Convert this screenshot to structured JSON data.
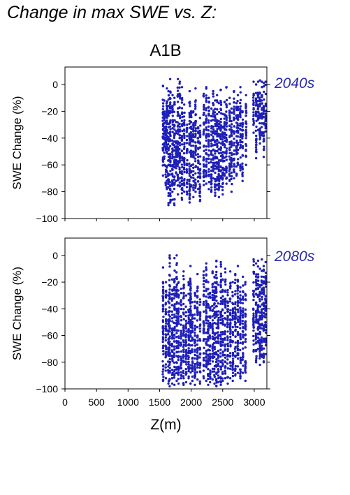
{
  "figure": {
    "title": "Change in max SWE vs. Z:",
    "scenario": "A1B",
    "colors": {
      "points": "#1f1fb8",
      "period_label": "#2a2ab0",
      "axes": "#000000"
    }
  },
  "chart_data": [
    {
      "type": "scatter",
      "period_label": "2040s",
      "xlabel": "",
      "ylabel": "SWE Change (%)",
      "xlim": [
        0,
        3200
      ],
      "ylim": [
        -100,
        13
      ],
      "yticks": [
        0,
        -20,
        -40,
        -60,
        -80,
        -100
      ],
      "x_tick_labels": [],
      "series": [
        {
          "name": "",
          "columns": [
            {
              "x": 1555,
              "top": -1,
              "bottom": -68
            },
            {
              "x": 1575,
              "top": -12,
              "bottom": -60
            },
            {
              "x": 1598,
              "top": -22,
              "bottom": -75
            },
            {
              "x": 1615,
              "top": -3,
              "bottom": -78
            },
            {
              "x": 1640,
              "top": -5,
              "bottom": -90
            },
            {
              "x": 1668,
              "top": 4,
              "bottom": -88
            },
            {
              "x": 1705,
              "top": -8,
              "bottom": -86
            },
            {
              "x": 1735,
              "top": -10,
              "bottom": -90
            },
            {
              "x": 1762,
              "top": -28,
              "bottom": -72
            },
            {
              "x": 1790,
              "top": 4,
              "bottom": -82
            },
            {
              "x": 1820,
              "top": 2,
              "bottom": -76
            },
            {
              "x": 1855,
              "top": -2,
              "bottom": -86
            },
            {
              "x": 1890,
              "top": -15,
              "bottom": -80
            },
            {
              "x": 1935,
              "top": -30,
              "bottom": -82
            },
            {
              "x": 1975,
              "top": -5,
              "bottom": -88
            },
            {
              "x": 2000,
              "top": -20,
              "bottom": -76
            },
            {
              "x": 2035,
              "top": -20,
              "bottom": -84
            },
            {
              "x": 2070,
              "top": -3,
              "bottom": -80
            },
            {
              "x": 2110,
              "top": -32,
              "bottom": -78
            },
            {
              "x": 2140,
              "top": -25,
              "bottom": -87
            },
            {
              "x": 2200,
              "top": -7,
              "bottom": -75
            },
            {
              "x": 2240,
              "top": -2,
              "bottom": -74
            },
            {
              "x": 2280,
              "top": -10,
              "bottom": -78
            },
            {
              "x": 2320,
              "top": -18,
              "bottom": -80
            },
            {
              "x": 2350,
              "top": -5,
              "bottom": -70
            },
            {
              "x": 2380,
              "top": -12,
              "bottom": -83
            },
            {
              "x": 2410,
              "top": -8,
              "bottom": -78
            },
            {
              "x": 2440,
              "top": -14,
              "bottom": -84
            },
            {
              "x": 2470,
              "top": -4,
              "bottom": -76
            },
            {
              "x": 2500,
              "top": -22,
              "bottom": -82
            },
            {
              "x": 2530,
              "top": -13,
              "bottom": -68
            },
            {
              "x": 2560,
              "top": -2,
              "bottom": -74
            },
            {
              "x": 2610,
              "top": -10,
              "bottom": -72
            },
            {
              "x": 2640,
              "top": -18,
              "bottom": -80
            },
            {
              "x": 2680,
              "top": -5,
              "bottom": -70
            },
            {
              "x": 2720,
              "top": -14,
              "bottom": -68
            },
            {
              "x": 2740,
              "top": -8,
              "bottom": -60
            },
            {
              "x": 2780,
              "top": -2,
              "bottom": -64
            },
            {
              "x": 2815,
              "top": -20,
              "bottom": -72
            },
            {
              "x": 2870,
              "top": -8,
              "bottom": -60
            },
            {
              "x": 2990,
              "top": 2,
              "bottom": -36
            },
            {
              "x": 3030,
              "top": 0,
              "bottom": -55
            },
            {
              "x": 3060,
              "top": 2,
              "bottom": -34
            },
            {
              "x": 3090,
              "top": 3,
              "bottom": -44
            },
            {
              "x": 3120,
              "top": 2,
              "bottom": -38
            },
            {
              "x": 3150,
              "top": 1,
              "bottom": -54
            },
            {
              "x": 3180,
              "top": 2,
              "bottom": -35
            }
          ]
        }
      ],
      "grid": false
    },
    {
      "type": "scatter",
      "period_label": "2080s",
      "xlabel": "Z(m)",
      "ylabel": "SWE Change (%)",
      "xlim": [
        0,
        3200
      ],
      "ylim": [
        -100,
        13
      ],
      "yticks": [
        0,
        -20,
        -40,
        -60,
        -80,
        -100
      ],
      "xticks": [
        0,
        500,
        1000,
        1500,
        2000,
        2500,
        3000
      ],
      "x_tick_labels": [
        "0",
        "500",
        "1000",
        "1500",
        "2000",
        "2500",
        "3000"
      ],
      "series": [
        {
          "name": "",
          "columns": [
            {
              "x": 1555,
              "top": -9,
              "bottom": -94
            },
            {
              "x": 1600,
              "top": -20,
              "bottom": -92
            },
            {
              "x": 1640,
              "top": -30,
              "bottom": -96
            },
            {
              "x": 1660,
              "top": 0,
              "bottom": -98
            },
            {
              "x": 1700,
              "top": -18,
              "bottom": -96
            },
            {
              "x": 1735,
              "top": -2,
              "bottom": -97
            },
            {
              "x": 1770,
              "top": 0,
              "bottom": -94
            },
            {
              "x": 1800,
              "top": -20,
              "bottom": -96
            },
            {
              "x": 1840,
              "top": -25,
              "bottom": -92
            },
            {
              "x": 1880,
              "top": -12,
              "bottom": -97
            },
            {
              "x": 1920,
              "top": -30,
              "bottom": -95
            },
            {
              "x": 1960,
              "top": -20,
              "bottom": -92
            },
            {
              "x": 1990,
              "top": -8,
              "bottom": -96
            },
            {
              "x": 2020,
              "top": -35,
              "bottom": -94
            },
            {
              "x": 2060,
              "top": -28,
              "bottom": -97
            },
            {
              "x": 2100,
              "top": -14,
              "bottom": -93
            },
            {
              "x": 2140,
              "top": -33,
              "bottom": -96
            },
            {
              "x": 2200,
              "top": -12,
              "bottom": -92
            },
            {
              "x": 2240,
              "top": -6,
              "bottom": -94
            },
            {
              "x": 2270,
              "top": -20,
              "bottom": -97
            },
            {
              "x": 2300,
              "top": -28,
              "bottom": -95
            },
            {
              "x": 2340,
              "top": -12,
              "bottom": -93
            },
            {
              "x": 2370,
              "top": -16,
              "bottom": -96
            },
            {
              "x": 2400,
              "top": -4,
              "bottom": -98
            },
            {
              "x": 2430,
              "top": -22,
              "bottom": -95
            },
            {
              "x": 2470,
              "top": -5,
              "bottom": -97
            },
            {
              "x": 2500,
              "top": -18,
              "bottom": -94
            },
            {
              "x": 2540,
              "top": -10,
              "bottom": -92
            },
            {
              "x": 2580,
              "top": -26,
              "bottom": -96
            },
            {
              "x": 2620,
              "top": -12,
              "bottom": -92
            },
            {
              "x": 2660,
              "top": -20,
              "bottom": -94
            },
            {
              "x": 2700,
              "top": -14,
              "bottom": -90
            },
            {
              "x": 2740,
              "top": -8,
              "bottom": -88
            },
            {
              "x": 2780,
              "top": -24,
              "bottom": -92
            },
            {
              "x": 2820,
              "top": -16,
              "bottom": -88
            },
            {
              "x": 2860,
              "top": -20,
              "bottom": -94
            },
            {
              "x": 2990,
              "top": -3,
              "bottom": -72
            },
            {
              "x": 3030,
              "top": -6,
              "bottom": -80
            },
            {
              "x": 3060,
              "top": -4,
              "bottom": -70
            },
            {
              "x": 3090,
              "top": -10,
              "bottom": -82
            },
            {
              "x": 3120,
              "top": -3,
              "bottom": -76
            },
            {
              "x": 3150,
              "top": -8,
              "bottom": -80
            },
            {
              "x": 3180,
              "top": -5,
              "bottom": -74
            }
          ]
        }
      ],
      "grid": false
    }
  ]
}
